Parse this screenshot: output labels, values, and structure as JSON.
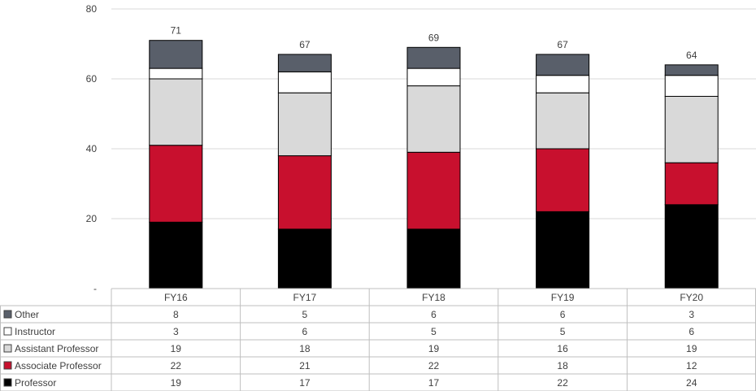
{
  "chart_data": {
    "type": "bar",
    "stacked": true,
    "categories": [
      "FY16",
      "FY17",
      "FY18",
      "FY19",
      "FY20"
    ],
    "series": [
      {
        "name": "Professor",
        "color": "#000000",
        "values": [
          19,
          17,
          17,
          22,
          24
        ]
      },
      {
        "name": "Associate Professor",
        "color": "#c8102e",
        "values": [
          22,
          21,
          22,
          18,
          12
        ]
      },
      {
        "name": "Assistant Professor",
        "color": "#d9d9d9",
        "values": [
          19,
          18,
          19,
          16,
          19
        ]
      },
      {
        "name": "Instructor",
        "color": "#ffffff",
        "values": [
          3,
          6,
          5,
          5,
          6
        ]
      },
      {
        "name": "Other",
        "color": "#595f6a",
        "values": [
          8,
          5,
          6,
          6,
          3
        ]
      }
    ],
    "totals": [
      71,
      67,
      69,
      67,
      64
    ],
    "ylim": [
      0,
      80
    ],
    "yticks": [
      {
        "value": 0,
        "label": "-"
      },
      {
        "value": 20,
        "label": "20"
      },
      {
        "value": 40,
        "label": "40"
      },
      {
        "value": 60,
        "label": "60"
      },
      {
        "value": 80,
        "label": "80"
      }
    ],
    "grid": true,
    "legend": "data-table-below"
  }
}
